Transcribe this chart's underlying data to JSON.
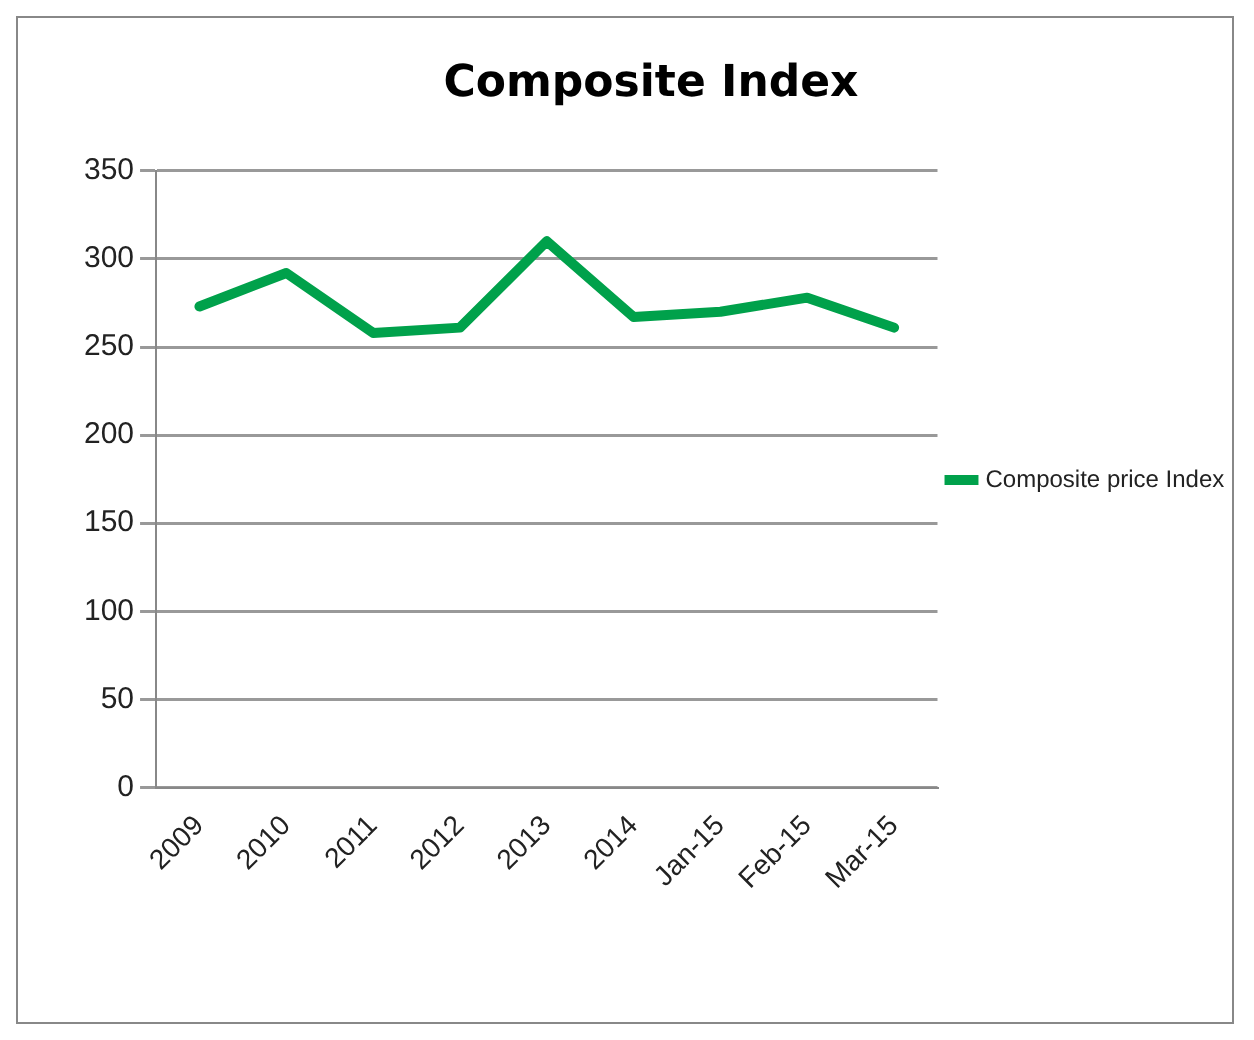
{
  "chart_data": {
    "type": "line",
    "title": "Composite Index",
    "categories": [
      "2009",
      "2010",
      "2011",
      "2012",
      "2013",
      "2014",
      "Jan-15",
      "Feb-15",
      "Mar-15"
    ],
    "series": [
      {
        "name": "Composite price Index",
        "color": "#00a14b",
        "values": [
          273,
          292,
          258,
          261,
          310,
          267,
          270,
          278,
          261
        ]
      }
    ],
    "ylim": [
      0,
      350
    ],
    "yticks": [
      0,
      50,
      100,
      150,
      200,
      250,
      300,
      350
    ],
    "grid": "y",
    "legend": "right",
    "marker": "none",
    "line_style": "solid"
  }
}
